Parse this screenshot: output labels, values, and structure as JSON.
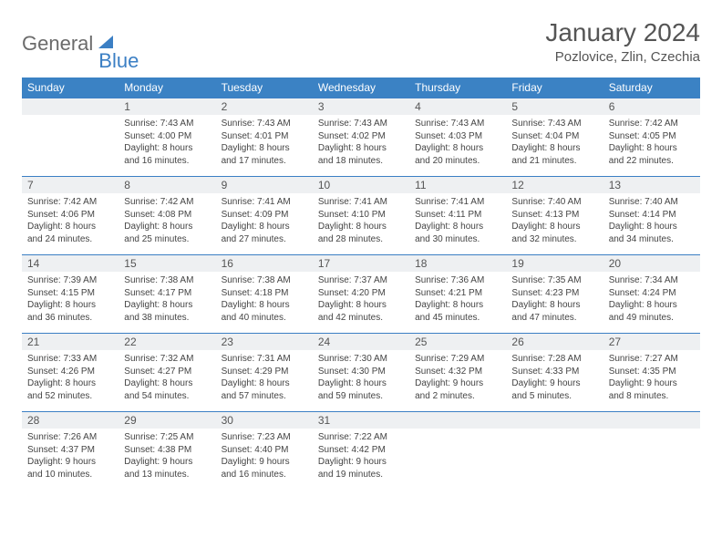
{
  "logo": {
    "part1": "General",
    "part2": "Blue"
  },
  "title": "January 2024",
  "location": "Pozlovice, Zlin, Czechia",
  "colors": {
    "header_bg": "#3b82c4",
    "header_text": "#ffffff",
    "daynum_bg": "#eef0f2",
    "border": "#3b7fc4",
    "logo_gray": "#6b6b6b",
    "logo_blue": "#3b7fc4"
  },
  "weekdays": [
    "Sunday",
    "Monday",
    "Tuesday",
    "Wednesday",
    "Thursday",
    "Friday",
    "Saturday"
  ],
  "weeks": [
    [
      null,
      {
        "n": "1",
        "sr": "Sunrise: 7:43 AM",
        "ss": "Sunset: 4:00 PM",
        "dl": "Daylight: 8 hours and 16 minutes."
      },
      {
        "n": "2",
        "sr": "Sunrise: 7:43 AM",
        "ss": "Sunset: 4:01 PM",
        "dl": "Daylight: 8 hours and 17 minutes."
      },
      {
        "n": "3",
        "sr": "Sunrise: 7:43 AM",
        "ss": "Sunset: 4:02 PM",
        "dl": "Daylight: 8 hours and 18 minutes."
      },
      {
        "n": "4",
        "sr": "Sunrise: 7:43 AM",
        "ss": "Sunset: 4:03 PM",
        "dl": "Daylight: 8 hours and 20 minutes."
      },
      {
        "n": "5",
        "sr": "Sunrise: 7:43 AM",
        "ss": "Sunset: 4:04 PM",
        "dl": "Daylight: 8 hours and 21 minutes."
      },
      {
        "n": "6",
        "sr": "Sunrise: 7:42 AM",
        "ss": "Sunset: 4:05 PM",
        "dl": "Daylight: 8 hours and 22 minutes."
      }
    ],
    [
      {
        "n": "7",
        "sr": "Sunrise: 7:42 AM",
        "ss": "Sunset: 4:06 PM",
        "dl": "Daylight: 8 hours and 24 minutes."
      },
      {
        "n": "8",
        "sr": "Sunrise: 7:42 AM",
        "ss": "Sunset: 4:08 PM",
        "dl": "Daylight: 8 hours and 25 minutes."
      },
      {
        "n": "9",
        "sr": "Sunrise: 7:41 AM",
        "ss": "Sunset: 4:09 PM",
        "dl": "Daylight: 8 hours and 27 minutes."
      },
      {
        "n": "10",
        "sr": "Sunrise: 7:41 AM",
        "ss": "Sunset: 4:10 PM",
        "dl": "Daylight: 8 hours and 28 minutes."
      },
      {
        "n": "11",
        "sr": "Sunrise: 7:41 AM",
        "ss": "Sunset: 4:11 PM",
        "dl": "Daylight: 8 hours and 30 minutes."
      },
      {
        "n": "12",
        "sr": "Sunrise: 7:40 AM",
        "ss": "Sunset: 4:13 PM",
        "dl": "Daylight: 8 hours and 32 minutes."
      },
      {
        "n": "13",
        "sr": "Sunrise: 7:40 AM",
        "ss": "Sunset: 4:14 PM",
        "dl": "Daylight: 8 hours and 34 minutes."
      }
    ],
    [
      {
        "n": "14",
        "sr": "Sunrise: 7:39 AM",
        "ss": "Sunset: 4:15 PM",
        "dl": "Daylight: 8 hours and 36 minutes."
      },
      {
        "n": "15",
        "sr": "Sunrise: 7:38 AM",
        "ss": "Sunset: 4:17 PM",
        "dl": "Daylight: 8 hours and 38 minutes."
      },
      {
        "n": "16",
        "sr": "Sunrise: 7:38 AM",
        "ss": "Sunset: 4:18 PM",
        "dl": "Daylight: 8 hours and 40 minutes."
      },
      {
        "n": "17",
        "sr": "Sunrise: 7:37 AM",
        "ss": "Sunset: 4:20 PM",
        "dl": "Daylight: 8 hours and 42 minutes."
      },
      {
        "n": "18",
        "sr": "Sunrise: 7:36 AM",
        "ss": "Sunset: 4:21 PM",
        "dl": "Daylight: 8 hours and 45 minutes."
      },
      {
        "n": "19",
        "sr": "Sunrise: 7:35 AM",
        "ss": "Sunset: 4:23 PM",
        "dl": "Daylight: 8 hours and 47 minutes."
      },
      {
        "n": "20",
        "sr": "Sunrise: 7:34 AM",
        "ss": "Sunset: 4:24 PM",
        "dl": "Daylight: 8 hours and 49 minutes."
      }
    ],
    [
      {
        "n": "21",
        "sr": "Sunrise: 7:33 AM",
        "ss": "Sunset: 4:26 PM",
        "dl": "Daylight: 8 hours and 52 minutes."
      },
      {
        "n": "22",
        "sr": "Sunrise: 7:32 AM",
        "ss": "Sunset: 4:27 PM",
        "dl": "Daylight: 8 hours and 54 minutes."
      },
      {
        "n": "23",
        "sr": "Sunrise: 7:31 AM",
        "ss": "Sunset: 4:29 PM",
        "dl": "Daylight: 8 hours and 57 minutes."
      },
      {
        "n": "24",
        "sr": "Sunrise: 7:30 AM",
        "ss": "Sunset: 4:30 PM",
        "dl": "Daylight: 8 hours and 59 minutes."
      },
      {
        "n": "25",
        "sr": "Sunrise: 7:29 AM",
        "ss": "Sunset: 4:32 PM",
        "dl": "Daylight: 9 hours and 2 minutes."
      },
      {
        "n": "26",
        "sr": "Sunrise: 7:28 AM",
        "ss": "Sunset: 4:33 PM",
        "dl": "Daylight: 9 hours and 5 minutes."
      },
      {
        "n": "27",
        "sr": "Sunrise: 7:27 AM",
        "ss": "Sunset: 4:35 PM",
        "dl": "Daylight: 9 hours and 8 minutes."
      }
    ],
    [
      {
        "n": "28",
        "sr": "Sunrise: 7:26 AM",
        "ss": "Sunset: 4:37 PM",
        "dl": "Daylight: 9 hours and 10 minutes."
      },
      {
        "n": "29",
        "sr": "Sunrise: 7:25 AM",
        "ss": "Sunset: 4:38 PM",
        "dl": "Daylight: 9 hours and 13 minutes."
      },
      {
        "n": "30",
        "sr": "Sunrise: 7:23 AM",
        "ss": "Sunset: 4:40 PM",
        "dl": "Daylight: 9 hours and 16 minutes."
      },
      {
        "n": "31",
        "sr": "Sunrise: 7:22 AM",
        "ss": "Sunset: 4:42 PM",
        "dl": "Daylight: 9 hours and 19 minutes."
      },
      null,
      null,
      null
    ]
  ]
}
